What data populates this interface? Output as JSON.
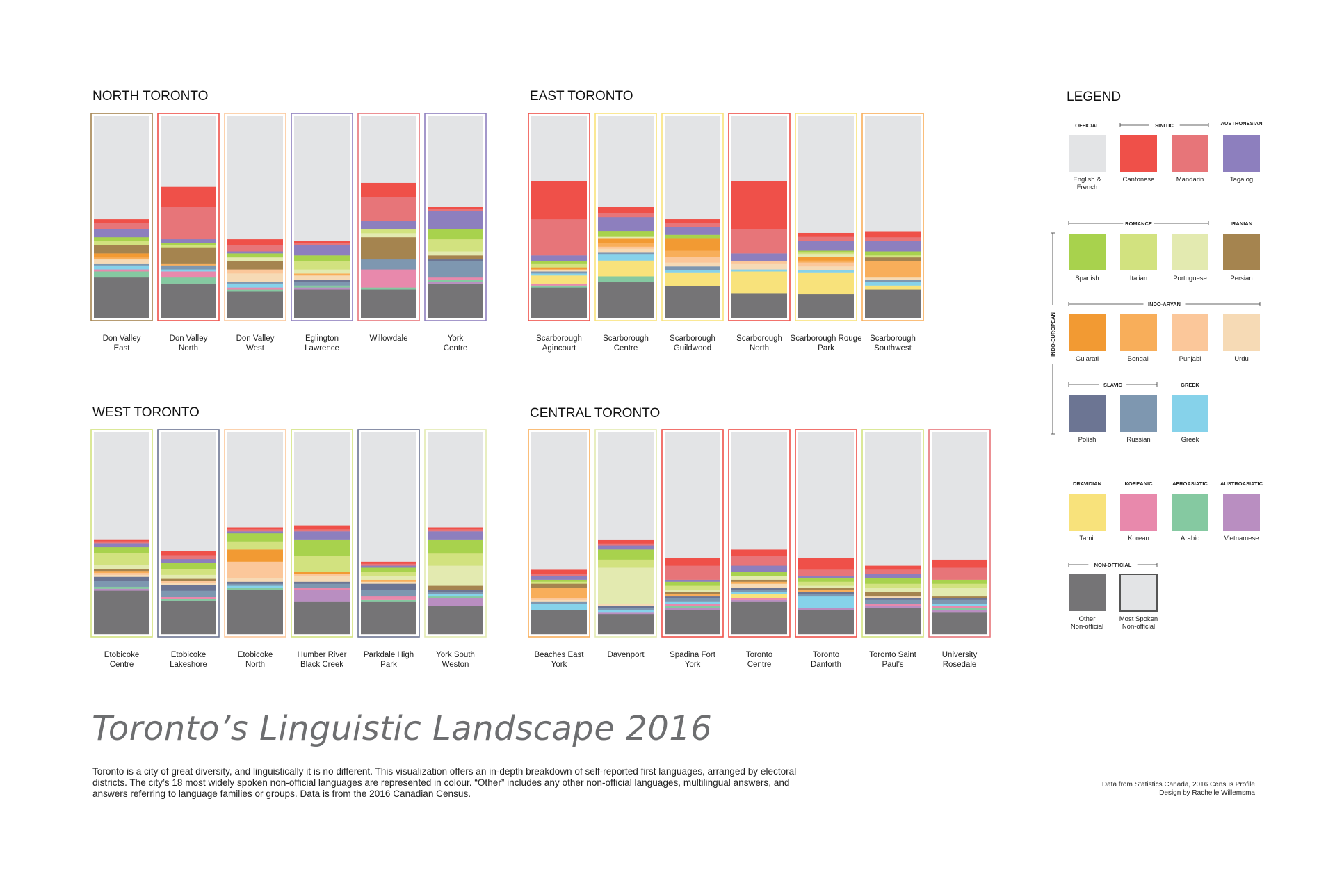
{
  "title": "Toronto’s Linguistic Landscape 2016",
  "description": "Toronto is a city of great diversity, and linguistically it is no different. This visualization offers an in-depth breakdown of self-reported first languages, arranged by electoral districts. The city’s 18 most widely spoken non-official languages are represented in colour. “Other” includes any other non-official languages, multilingual answers, and answers referring to language families or groups. Data is from the 2016 Canadian Census.",
  "credits": [
    "Data from Statistics Canada, 2016 Census Profile",
    "Design by Rachelle Willemsma"
  ],
  "legend": {
    "title": "LEGEND",
    "family_label": "INDO-EUROPEAN",
    "group_labels": [
      "OFFICIAL",
      "SINITIC",
      "AUSTRONESIAN",
      "ROMANCE",
      "IRANIAN",
      "INDO-ARYAN",
      "SLAVIC",
      "GREEK",
      "DRAVIDIAN",
      "KOREANIC",
      "AFROASIATIC",
      "AUSTROASIATIC",
      "NON-OFFICIAL"
    ]
  },
  "languages": [
    {
      "key": "english_french",
      "label": "English & French",
      "color": "#e3e4e6"
    },
    {
      "key": "cantonese",
      "label": "Cantonese",
      "color": "#ef5049"
    },
    {
      "key": "mandarin",
      "label": "Mandarin",
      "color": "#e77579"
    },
    {
      "key": "tagalog",
      "label": "Tagalog",
      "color": "#8d7fbe"
    },
    {
      "key": "spanish",
      "label": "Spanish",
      "color": "#a8d24d"
    },
    {
      "key": "italian",
      "label": "Italian",
      "color": "#d2e27f"
    },
    {
      "key": "portuguese",
      "label": "Portuguese",
      "color": "#e3eab0"
    },
    {
      "key": "persian",
      "label": "Persian",
      "color": "#a5844f"
    },
    {
      "key": "gujarati",
      "label": "Gujarati",
      "color": "#f29a33"
    },
    {
      "key": "bengali",
      "label": "Bengali",
      "color": "#f8ae5a"
    },
    {
      "key": "punjabi",
      "label": "Punjabi",
      "color": "#fbc79a"
    },
    {
      "key": "urdu",
      "label": "Urdu",
      "color": "#f6dab5"
    },
    {
      "key": "polish",
      "label": "Polish",
      "color": "#6c7593"
    },
    {
      "key": "russian",
      "label": "Russian",
      "color": "#7e97b0"
    },
    {
      "key": "greek",
      "label": "Greek",
      "color": "#86d2ea"
    },
    {
      "key": "tamil",
      "label": "Tamil",
      "color": "#f8e27b"
    },
    {
      "key": "korean",
      "label": "Korean",
      "color": "#e889ac"
    },
    {
      "key": "arabic",
      "label": "Arabic",
      "color": "#85c9a1"
    },
    {
      "key": "vietnamese",
      "label": "Vietnamese",
      "color": "#b98ec1"
    },
    {
      "key": "other",
      "label": "Other Non-official",
      "color": "#757476"
    },
    {
      "key": "most_spoken",
      "label": "Most Spoken Non-official",
      "color": "#e3e4e6"
    }
  ],
  "chart_data": {
    "type": "stacked-bar",
    "unit": "share of population",
    "stack_order_bottom_to_top": [
      "other",
      "vietnamese",
      "arabic",
      "korean",
      "tamil",
      "greek",
      "russian",
      "polish",
      "urdu",
      "punjabi",
      "bengali",
      "gujarati",
      "persian",
      "portuguese",
      "italian",
      "spanish",
      "tagalog",
      "mandarin",
      "cantonese",
      "english_french"
    ],
    "regions": [
      {
        "name": "NORTH TORONTO",
        "districts": [
          {
            "name": "Don Valley East",
            "outline": "persian",
            "values": {
              "other": 0.2,
              "arabic": 0.03,
              "korean": 0.01,
              "greek": 0.02,
              "russian": 0.01,
              "urdu": 0.02,
              "bengali": 0.01,
              "gujarati": 0.02,
              "persian": 0.04,
              "italian": 0.02,
              "spanish": 0.02,
              "tagalog": 0.04,
              "mandarin": 0.03,
              "cantonese": 0.02,
              "english_french": 0.51
            }
          },
          {
            "name": "Don Valley North",
            "outline": "cantonese",
            "values": {
              "other": 0.17,
              "arabic": 0.03,
              "korean": 0.03,
              "greek": 0.01,
              "russian": 0.02,
              "bengali": 0.01,
              "persian": 0.08,
              "italian": 0.01,
              "spanish": 0.01,
              "tagalog": 0.02,
              "mandarin": 0.16,
              "cantonese": 0.1,
              "english_french": 0.35
            }
          },
          {
            "name": "Don Valley West",
            "outline": "punjabi",
            "values": {
              "other": 0.13,
              "arabic": 0.01,
              "korean": 0.01,
              "greek": 0.02,
              "russian": 0.01,
              "urdu": 0.04,
              "punjabi": 0.02,
              "persian": 0.04,
              "portuguese": 0.02,
              "spanish": 0.02,
              "tagalog": 0.01,
              "mandarin": 0.03,
              "cantonese": 0.03,
              "english_french": 0.61
            }
          },
          {
            "name": "Eglington Lawrence",
            "outline": "tagalog",
            "values": {
              "other": 0.14,
              "vietnamese": 0.01,
              "arabic": 0.01,
              "russian": 0.02,
              "polish": 0.01,
              "urdu": 0.02,
              "bengali": 0.01,
              "portuguese": 0.02,
              "italian": 0.04,
              "spanish": 0.03,
              "tagalog": 0.05,
              "mandarin": 0.01,
              "cantonese": 0.01,
              "english_french": 0.62
            }
          },
          {
            "name": "Willowdale",
            "outline": "mandarin",
            "values": {
              "other": 0.14,
              "arabic": 0.01,
              "korean": 0.09,
              "russian": 0.05,
              "portuguese": 0.02,
              "persian": 0.11,
              "italian": 0.02,
              "tagalog": 0.04,
              "mandarin": 0.12,
              "cantonese": 0.07,
              "english_french": 0.33
            }
          },
          {
            "name": "York Centre",
            "outline": "tagalog",
            "values": {
              "other": 0.17,
              "vietnamese": 0.01,
              "arabic": 0.01,
              "korean": 0.01,
              "russian": 0.08,
              "polish": 0.01,
              "persian": 0.02,
              "portuguese": 0.02,
              "italian": 0.06,
              "spanish": 0.05,
              "tagalog": 0.09,
              "mandarin": 0.01,
              "cantonese": 0.01,
              "english_french": 0.45
            }
          }
        ]
      },
      {
        "name": "EAST TORONTO",
        "districts": [
          {
            "name": "Scarborough Agincourt",
            "outline": "cantonese",
            "values": {
              "other": 0.15,
              "arabic": 0.01,
              "korean": 0.01,
              "tamil": 0.04,
              "greek": 0.01,
              "russian": 0.01,
              "urdu": 0.01,
              "gujarati": 0.01,
              "italian": 0.02,
              "spanish": 0.01,
              "tagalog": 0.03,
              "mandarin": 0.18,
              "cantonese": 0.19,
              "english_french": 0.32
            }
          },
          {
            "name": "Scarborough Centre",
            "outline": "tamil",
            "values": {
              "other": 0.18,
              "arabic": 0.03,
              "tamil": 0.08,
              "greek": 0.03,
              "russian": 0.01,
              "urdu": 0.02,
              "punjabi": 0.01,
              "bengali": 0.02,
              "gujarati": 0.02,
              "portuguese": 0.01,
              "spanish": 0.03,
              "tagalog": 0.07,
              "mandarin": 0.02,
              "cantonese": 0.03,
              "english_french": 0.46
            }
          },
          {
            "name": "Scarborough Guildwood",
            "outline": "tamil",
            "values": {
              "other": 0.16,
              "greek": 0.01,
              "tamil": 0.07,
              "russian": 0.02,
              "urdu": 0.02,
              "punjabi": 0.03,
              "bengali": 0.03,
              "gujarati": 0.06,
              "spanish": 0.02,
              "tagalog": 0.04,
              "mandarin": 0.02,
              "cantonese": 0.02,
              "english_french": 0.52
            }
          },
          {
            "name": "Scarborough North",
            "outline": "cantonese",
            "values": {
              "other": 0.12,
              "greek": 0.01,
              "tamil": 0.11,
              "urdu": 0.03,
              "punjabi": 0.01,
              "tagalog": 0.04,
              "mandarin": 0.12,
              "cantonese": 0.24,
              "english_french": 0.32
            }
          },
          {
            "name": "Scarborough Rouge Park",
            "outline": "tamil",
            "values": {
              "other": 0.12,
              "greek": 0.01,
              "tamil": 0.11,
              "urdu": 0.02,
              "punjabi": 0.02,
              "bengali": 0.01,
              "gujarati": 0.02,
              "portuguese": 0.01,
              "italian": 0.01,
              "spanish": 0.01,
              "tagalog": 0.05,
              "mandarin": 0.02,
              "cantonese": 0.02,
              "english_french": 0.59
            }
          },
          {
            "name": "Scarborough Southwest",
            "outline": "bengali",
            "values": {
              "other": 0.14,
              "tamil": 0.02,
              "greek": 0.02,
              "russian": 0.01,
              "urdu": 0.01,
              "bengali": 0.08,
              "persian": 0.02,
              "italian": 0.01,
              "spanish": 0.02,
              "tagalog": 0.05,
              "mandarin": 0.02,
              "cantonese": 0.03,
              "english_french": 0.57
            }
          }
        ]
      },
      {
        "name": "WEST TORONTO",
        "districts": [
          {
            "name": "Etobicoke Centre",
            "outline": "italian",
            "values": {
              "other": 0.22,
              "vietnamese": 0.01,
              "arabic": 0.01,
              "russian": 0.03,
              "polish": 0.02,
              "urdu": 0.01,
              "punjabi": 0.01,
              "bengali": 0.01,
              "persian": 0.01,
              "portuguese": 0.02,
              "italian": 0.06,
              "spanish": 0.03,
              "tagalog": 0.02,
              "mandarin": 0.01,
              "cantonese": 0.01,
              "english_french": 0.54
            }
          },
          {
            "name": "Etobicoke Lakeshore",
            "outline": "polish",
            "values": {
              "other": 0.17,
              "arabic": 0.01,
              "korean": 0.01,
              "russian": 0.03,
              "polish": 0.03,
              "urdu": 0.01,
              "punjabi": 0.01,
              "persian": 0.01,
              "portuguese": 0.02,
              "italian": 0.03,
              "spanish": 0.03,
              "tagalog": 0.02,
              "mandarin": 0.02,
              "cantonese": 0.02,
              "english_french": 0.6
            }
          },
          {
            "name": "Etobicoke North",
            "outline": "punjabi",
            "values": {
              "other": 0.22,
              "arabic": 0.01,
              "greek": 0.01,
              "russian": 0.01,
              "polish": 0.01,
              "urdu": 0.02,
              "punjabi": 0.08,
              "gujarati": 0.06,
              "italian": 0.04,
              "spanish": 0.04,
              "tagalog": 0.01,
              "mandarin": 0.01,
              "cantonese": 0.01,
              "english_french": 0.47
            }
          },
          {
            "name": "Humber River Black Creek",
            "outline": "italian",
            "values": {
              "other": 0.16,
              "vietnamese": 0.06,
              "korean": 0.01,
              "russian": 0.02,
              "polish": 0.01,
              "urdu": 0.03,
              "punjabi": 0.01,
              "gujarati": 0.01,
              "italian": 0.08,
              "spanish": 0.08,
              "tagalog": 0.04,
              "mandarin": 0.01,
              "cantonese": 0.02,
              "english_french": 0.46
            }
          },
          {
            "name": "Parkdale High Park",
            "outline": "polish",
            "values": {
              "other": 0.16,
              "arabic": 0.01,
              "korean": 0.02,
              "russian": 0.03,
              "polish": 0.03,
              "urdu": 0.01,
              "bengali": 0.01,
              "portuguese": 0.02,
              "italian": 0.02,
              "spanish": 0.02,
              "tagalog": 0.01,
              "mandarin": 0.01,
              "cantonese": 0.01,
              "english_french": 0.64
            }
          },
          {
            "name": "York South Weston",
            "outline": "portuguese",
            "values": {
              "other": 0.14,
              "vietnamese": 0.04,
              "arabic": 0.01,
              "greek": 0.01,
              "russian": 0.01,
              "polish": 0.01,
              "persian": 0.02,
              "portuguese": 0.1,
              "italian": 0.06,
              "spanish": 0.07,
              "tagalog": 0.04,
              "mandarin": 0.01,
              "cantonese": 0.01,
              "english_french": 0.47
            }
          }
        ]
      },
      {
        "name": "CENTRAL TORONTO",
        "districts": [
          {
            "name": "Beaches East York",
            "outline": "bengali",
            "values": {
              "other": 0.12,
              "greek": 0.03,
              "russian": 0.01,
              "urdu": 0.01,
              "punjabi": 0.01,
              "bengali": 0.05,
              "persian": 0.02,
              "italian": 0.01,
              "spanish": 0.01,
              "tagalog": 0.02,
              "mandarin": 0.01,
              "cantonese": 0.02,
              "english_french": 0.68
            }
          },
          {
            "name": "Davenport",
            "outline": "portuguese",
            "values": {
              "other": 0.1,
              "vietnamese": 0.01,
              "greek": 0.01,
              "russian": 0.01,
              "polish": 0.01,
              "urdu": 0.01,
              "portuguese": 0.18,
              "italian": 0.04,
              "spanish": 0.05,
              "tagalog": 0.02,
              "mandarin": 0.01,
              "cantonese": 0.02,
              "english_french": 0.53
            }
          },
          {
            "name": "Spadina Fort York",
            "outline": "cantonese",
            "values": {
              "other": 0.12,
              "vietnamese": 0.01,
              "arabic": 0.01,
              "korean": 0.01,
              "greek": 0.01,
              "russian": 0.02,
              "polish": 0.01,
              "bengali": 0.01,
              "persian": 0.01,
              "portuguese": 0.01,
              "italian": 0.02,
              "spanish": 0.02,
              "tagalog": 0.01,
              "mandarin": 0.07,
              "cantonese": 0.04,
              "english_french": 0.62
            }
          },
          {
            "name": "Toronto Centre",
            "outline": "cantonese",
            "values": {
              "other": 0.16,
              "vietnamese": 0.01,
              "korean": 0.01,
              "tamil": 0.02,
              "greek": 0.01,
              "russian": 0.01,
              "polish": 0.01,
              "urdu": 0.02,
              "bengali": 0.01,
              "persian": 0.01,
              "portuguese": 0.02,
              "spanish": 0.02,
              "tagalog": 0.03,
              "mandarin": 0.05,
              "cantonese": 0.03,
              "english_french": 0.58
            }
          },
          {
            "name": "Toronto Danforth",
            "outline": "cantonese",
            "values": {
              "other": 0.12,
              "vietnamese": 0.01,
              "greek": 0.06,
              "russian": 0.01,
              "polish": 0.01,
              "bengali": 0.01,
              "persian": 0.01,
              "portuguese": 0.01,
              "italian": 0.02,
              "spanish": 0.02,
              "tagalog": 0.01,
              "mandarin": 0.03,
              "cantonese": 0.06,
              "english_french": 0.62
            }
          },
          {
            "name": "Toronto Saint Paul’s",
            "outline": "italian",
            "values": {
              "other": 0.13,
              "vietnamese": 0.01,
              "korean": 0.01,
              "russian": 0.02,
              "polish": 0.01,
              "urdu": 0.01,
              "persian": 0.02,
              "portuguese": 0.02,
              "italian": 0.02,
              "spanish": 0.03,
              "tagalog": 0.02,
              "mandarin": 0.02,
              "cantonese": 0.02,
              "english_french": 0.66
            }
          },
          {
            "name": "University Rosedale",
            "outline": "mandarin",
            "values": {
              "other": 0.11,
              "vietnamese": 0.01,
              "arabic": 0.01,
              "korean": 0.01,
              "greek": 0.01,
              "russian": 0.02,
              "polish": 0.01,
              "persian": 0.01,
              "portuguese": 0.04,
              "italian": 0.02,
              "spanish": 0.02,
              "mandarin": 0.06,
              "cantonese": 0.04,
              "english_french": 0.63
            }
          }
        ]
      }
    ]
  }
}
